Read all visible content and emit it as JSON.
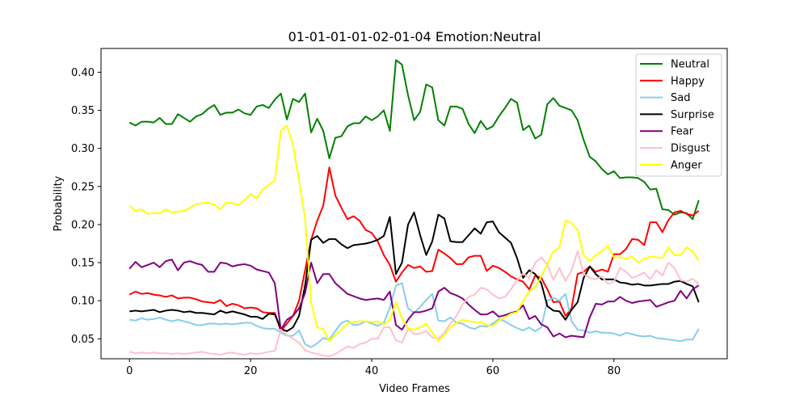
{
  "chart_data": {
    "type": "line",
    "title": "01-01-01-01-02-01-04 Emotion:Neutral",
    "xlabel": "Video Frames",
    "ylabel": "Probability",
    "xlim": [
      -4.7,
      98.7
    ],
    "ylim": [
      0.0238,
      0.4312
    ],
    "xticks": [
      0,
      20,
      40,
      60,
      80
    ],
    "xtick_labels": [
      "0",
      "20",
      "40",
      "60",
      "80"
    ],
    "yticks": [
      0.05,
      0.1,
      0.15,
      0.2,
      0.25,
      0.3,
      0.35,
      0.4
    ],
    "ytick_labels": [
      "0.05",
      "0.10",
      "0.15",
      "0.20",
      "0.25",
      "0.30",
      "0.35",
      "0.40"
    ],
    "grid": false,
    "legend_position": "top-right",
    "series": [
      {
        "name": "Neutral",
        "color": "#008000",
        "values": [
          0.334,
          0.33,
          0.335,
          0.335,
          0.334,
          0.34,
          0.332,
          0.332,
          0.345,
          0.34,
          0.335,
          0.342,
          0.345,
          0.352,
          0.357,
          0.344,
          0.347,
          0.347,
          0.351,
          0.346,
          0.344,
          0.355,
          0.357,
          0.353,
          0.364,
          0.372,
          0.338,
          0.365,
          0.361,
          0.372,
          0.321,
          0.339,
          0.323,
          0.287,
          0.314,
          0.316,
          0.329,
          0.333,
          0.333,
          0.342,
          0.337,
          0.342,
          0.35,
          0.323,
          0.416,
          0.41,
          0.37,
          0.337,
          0.348,
          0.384,
          0.38,
          0.337,
          0.33,
          0.355,
          0.355,
          0.352,
          0.332,
          0.32,
          0.336,
          0.325,
          0.329,
          0.342,
          0.353,
          0.365,
          0.36,
          0.324,
          0.33,
          0.313,
          0.318,
          0.358,
          0.366,
          0.356,
          0.353,
          0.35,
          0.337,
          0.311,
          0.289,
          0.283,
          0.273,
          0.266,
          0.27,
          0.261,
          0.262,
          0.262,
          0.261,
          0.256,
          0.246,
          0.247,
          0.22,
          0.219,
          0.213,
          0.216,
          0.215,
          0.207,
          0.232
        ]
      },
      {
        "name": "Happy",
        "color": "#ff0000",
        "values": [
          0.108,
          0.112,
          0.109,
          0.11,
          0.108,
          0.107,
          0.105,
          0.107,
          0.103,
          0.104,
          0.104,
          0.102,
          0.099,
          0.098,
          0.097,
          0.101,
          0.093,
          0.096,
          0.094,
          0.09,
          0.091,
          0.09,
          0.085,
          0.084,
          0.084,
          0.06,
          0.07,
          0.08,
          0.1,
          0.14,
          0.18,
          0.205,
          0.225,
          0.275,
          0.238,
          0.222,
          0.207,
          0.211,
          0.205,
          0.193,
          0.189,
          0.178,
          0.16,
          0.147,
          0.125,
          0.137,
          0.147,
          0.143,
          0.145,
          0.138,
          0.139,
          0.167,
          0.162,
          0.156,
          0.148,
          0.148,
          0.157,
          0.159,
          0.159,
          0.139,
          0.146,
          0.143,
          0.138,
          0.132,
          0.128,
          0.125,
          0.115,
          0.133,
          0.13,
          0.115,
          0.098,
          0.099,
          0.08,
          0.09,
          0.135,
          0.138,
          0.145,
          0.138,
          0.141,
          0.138,
          0.161,
          0.161,
          0.168,
          0.181,
          0.18,
          0.173,
          0.203,
          0.203,
          0.19,
          0.206,
          0.216,
          0.218,
          0.214,
          0.212,
          0.218
        ]
      },
      {
        "name": "Sad",
        "color": "#87ceeb",
        "values": [
          0.075,
          0.074,
          0.077,
          0.075,
          0.076,
          0.078,
          0.075,
          0.073,
          0.075,
          0.073,
          0.071,
          0.068,
          0.068,
          0.07,
          0.07,
          0.069,
          0.07,
          0.069,
          0.07,
          0.071,
          0.071,
          0.067,
          0.064,
          0.063,
          0.063,
          0.058,
          0.054,
          0.054,
          0.061,
          0.043,
          0.039,
          0.044,
          0.051,
          0.049,
          0.06,
          0.071,
          0.074,
          0.068,
          0.069,
          0.073,
          0.07,
          0.067,
          0.071,
          0.091,
          0.12,
          0.123,
          0.09,
          0.084,
          0.092,
          0.101,
          0.109,
          0.074,
          0.073,
          0.078,
          0.071,
          0.07,
          0.065,
          0.063,
          0.067,
          0.066,
          0.07,
          0.076,
          0.073,
          0.068,
          0.064,
          0.061,
          0.065,
          0.06,
          0.065,
          0.1,
          0.104,
          0.1,
          0.109,
          0.073,
          0.062,
          0.061,
          0.058,
          0.06,
          0.058,
          0.058,
          0.057,
          0.054,
          0.058,
          0.056,
          0.054,
          0.053,
          0.054,
          0.051,
          0.05,
          0.049,
          0.048,
          0.047,
          0.049,
          0.049,
          0.063
        ]
      },
      {
        "name": "Surprise",
        "color": "#000000",
        "values": [
          0.086,
          0.087,
          0.086,
          0.087,
          0.088,
          0.085,
          0.087,
          0.088,
          0.087,
          0.085,
          0.086,
          0.084,
          0.084,
          0.083,
          0.082,
          0.087,
          0.084,
          0.086,
          0.084,
          0.082,
          0.079,
          0.079,
          0.076,
          0.083,
          0.082,
          0.063,
          0.06,
          0.065,
          0.08,
          0.12,
          0.18,
          0.185,
          0.176,
          0.181,
          0.181,
          0.174,
          0.169,
          0.173,
          0.174,
          0.175,
          0.177,
          0.18,
          0.185,
          0.21,
          0.135,
          0.15,
          0.2,
          0.216,
          0.186,
          0.16,
          0.178,
          0.213,
          0.208,
          0.178,
          0.177,
          0.177,
          0.186,
          0.195,
          0.188,
          0.203,
          0.204,
          0.19,
          0.183,
          0.176,
          0.156,
          0.13,
          0.14,
          0.135,
          0.123,
          0.093,
          0.087,
          0.086,
          0.075,
          0.088,
          0.098,
          0.13,
          0.145,
          0.135,
          0.128,
          0.128,
          0.128,
          0.124,
          0.123,
          0.121,
          0.122,
          0.12,
          0.12,
          0.121,
          0.122,
          0.122,
          0.125,
          0.126,
          0.122,
          0.119,
          0.098
        ]
      },
      {
        "name": "Fear",
        "color": "#800080",
        "values": [
          0.142,
          0.151,
          0.144,
          0.147,
          0.15,
          0.144,
          0.152,
          0.154,
          0.14,
          0.15,
          0.152,
          0.149,
          0.147,
          0.138,
          0.138,
          0.15,
          0.149,
          0.145,
          0.147,
          0.148,
          0.146,
          0.141,
          0.139,
          0.137,
          0.123,
          0.062,
          0.075,
          0.08,
          0.09,
          0.11,
          0.15,
          0.123,
          0.135,
          0.135,
          0.123,
          0.116,
          0.109,
          0.106,
          0.103,
          0.101,
          0.102,
          0.103,
          0.101,
          0.112,
          0.068,
          0.062,
          0.075,
          0.085,
          0.085,
          0.087,
          0.09,
          0.112,
          0.117,
          0.11,
          0.107,
          0.103,
          0.095,
          0.088,
          0.082,
          0.082,
          0.086,
          0.079,
          0.081,
          0.084,
          0.086,
          0.094,
          0.076,
          0.08,
          0.069,
          0.065,
          0.053,
          0.057,
          0.052,
          0.054,
          0.053,
          0.052,
          0.078,
          0.096,
          0.095,
          0.099,
          0.099,
          0.105,
          0.1,
          0.097,
          0.099,
          0.1,
          0.101,
          0.092,
          0.095,
          0.098,
          0.1,
          0.113,
          0.103,
          0.115,
          0.12
        ]
      },
      {
        "name": "Disgust",
        "color": "#ffc0cb",
        "values": [
          0.033,
          0.031,
          0.032,
          0.031,
          0.032,
          0.031,
          0.031,
          0.03,
          0.031,
          0.03,
          0.031,
          0.032,
          0.033,
          0.031,
          0.03,
          0.029,
          0.031,
          0.032,
          0.03,
          0.029,
          0.031,
          0.03,
          0.031,
          0.033,
          0.034,
          0.062,
          0.055,
          0.05,
          0.045,
          0.035,
          0.032,
          0.03,
          0.028,
          0.027,
          0.03,
          0.035,
          0.04,
          0.038,
          0.043,
          0.045,
          0.05,
          0.05,
          0.065,
          0.065,
          0.048,
          0.045,
          0.063,
          0.056,
          0.057,
          0.06,
          0.052,
          0.05,
          0.058,
          0.07,
          0.08,
          0.095,
          0.105,
          0.108,
          0.117,
          0.115,
          0.108,
          0.103,
          0.105,
          0.115,
          0.127,
          0.136,
          0.13,
          0.15,
          0.157,
          0.147,
          0.127,
          0.143,
          0.126,
          0.14,
          0.165,
          0.135,
          0.13,
          0.128,
          0.132,
          0.122,
          0.125,
          0.143,
          0.138,
          0.13,
          0.133,
          0.137,
          0.128,
          0.14,
          0.133,
          0.15,
          0.143,
          0.127,
          0.125,
          0.129,
          0.122
        ]
      },
      {
        "name": "Anger",
        "color": "#ffff00",
        "values": [
          0.225,
          0.218,
          0.22,
          0.214,
          0.215,
          0.215,
          0.22,
          0.216,
          0.217,
          0.218,
          0.222,
          0.227,
          0.228,
          0.229,
          0.226,
          0.22,
          0.229,
          0.228,
          0.226,
          0.232,
          0.24,
          0.234,
          0.246,
          0.252,
          0.258,
          0.323,
          0.33,
          0.305,
          0.258,
          0.208,
          0.098,
          0.065,
          0.063,
          0.047,
          0.055,
          0.062,
          0.07,
          0.072,
          0.073,
          0.073,
          0.072,
          0.073,
          0.069,
          0.075,
          0.098,
          0.077,
          0.064,
          0.062,
          0.065,
          0.07,
          0.058,
          0.047,
          0.055,
          0.065,
          0.071,
          0.075,
          0.073,
          0.072,
          0.072,
          0.068,
          0.067,
          0.074,
          0.078,
          0.083,
          0.085,
          0.1,
          0.112,
          0.118,
          0.132,
          0.148,
          0.165,
          0.17,
          0.205,
          0.202,
          0.193,
          0.16,
          0.152,
          0.16,
          0.165,
          0.172,
          0.157,
          0.157,
          0.155,
          0.158,
          0.15,
          0.155,
          0.158,
          0.157,
          0.156,
          0.17,
          0.16,
          0.16,
          0.17,
          0.165,
          0.152
        ]
      }
    ]
  }
}
